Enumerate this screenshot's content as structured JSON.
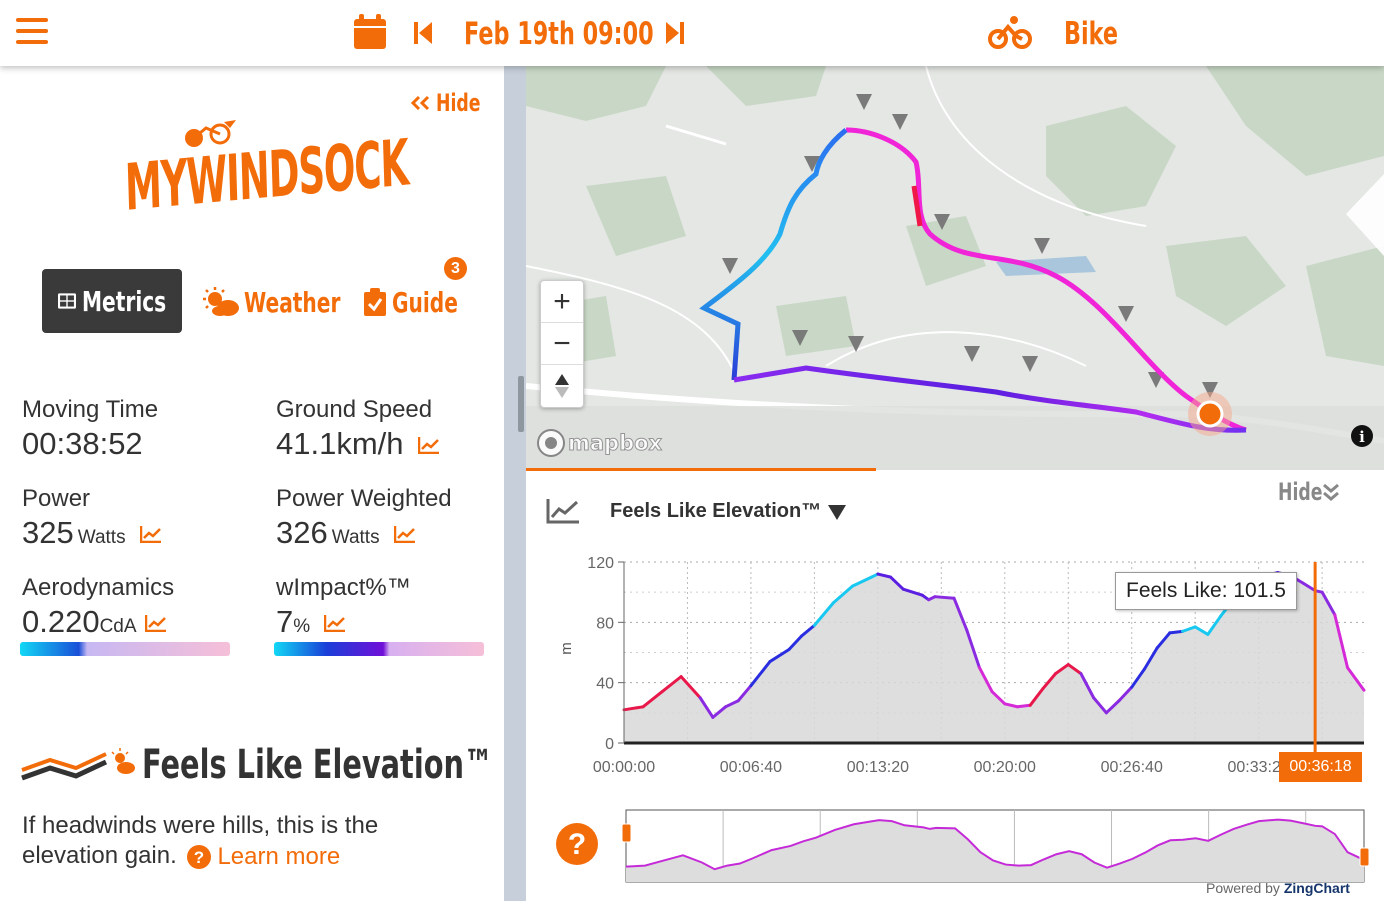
{
  "header": {
    "date_time": "Feb 19th 09:00",
    "activity": "Bike"
  },
  "sidebar": {
    "hide_label": "Hide",
    "logo_text": "MYWINDSOCK",
    "tabs": [
      {
        "label": "Metrics",
        "active": true
      },
      {
        "label": "Weather",
        "active": false
      },
      {
        "label": "Guide",
        "active": false,
        "badge": "3"
      }
    ],
    "metrics": {
      "moving_time": {
        "label": "Moving Time",
        "value": "00:38:52"
      },
      "ground_speed": {
        "label": "Ground Speed",
        "value": "41.1km/h"
      },
      "power": {
        "label": "Power",
        "value": "325",
        "unit": "Watts"
      },
      "power_weighted": {
        "label": "Power Weighted",
        "value": "326",
        "unit": "Watts"
      },
      "aerodynamics": {
        "label": "Aerodynamics",
        "value": "0.220",
        "unit": "CdA"
      },
      "wimpact": {
        "label": "wImpact%™",
        "value": "7",
        "unit": "%"
      }
    },
    "feature": {
      "title": "Feels Like Elevation™",
      "description": "If headwinds were hills, this is the elevation gain.",
      "learn_more": "Learn more"
    }
  },
  "map": {
    "attribution": "mapbox",
    "zoom_in": "+",
    "zoom_out": "−"
  },
  "chart_panel": {
    "hide_label": "Hide",
    "selector_label": "Feels Like Elevation™",
    "tooltip": "Feels Like: 101.5",
    "cursor_time": "00:36:18",
    "powered_by": "Powered by",
    "powered_brand": "ZingChart"
  },
  "chart_data": {
    "type": "area",
    "title": "",
    "xlabel": "",
    "ylabel": "m",
    "ylim": [
      0,
      120
    ],
    "y_ticks": [
      0,
      40,
      80,
      120
    ],
    "x_ticks": [
      "00:00:00",
      "00:06:40",
      "00:13:20",
      "00:20:00",
      "00:26:40",
      "00:33:20"
    ],
    "x_tick_seconds": [
      0,
      400,
      800,
      1200,
      1600,
      2000
    ],
    "x_max_seconds": 2332,
    "series": [
      {
        "x": [
          0,
          60,
          120,
          180,
          240,
          280,
          320,
          360,
          400,
          460,
          520,
          560,
          600,
          660,
          720,
          780,
          800,
          840,
          880,
          940,
          960,
          980,
          1040,
          1080,
          1120,
          1160,
          1200,
          1240,
          1280,
          1320,
          1360,
          1400,
          1440,
          1480,
          1520,
          1560,
          1600,
          1640,
          1680,
          1720,
          1760,
          1800,
          1840,
          1880,
          1920,
          1960,
          2000,
          2060,
          2100,
          2140,
          2178,
          2200,
          2240,
          2280,
          2332
        ],
        "y": [
          22,
          24,
          34,
          44,
          30,
          17,
          24,
          28,
          38,
          54,
          62,
          71,
          78,
          93,
          104,
          110,
          112,
          110,
          102,
          98,
          95,
          97,
          96,
          75,
          50,
          34,
          26,
          24,
          25,
          36,
          46,
          52,
          46,
          30,
          20,
          28,
          37,
          49,
          63,
          73,
          74,
          77,
          72,
          84,
          95,
          103,
          110,
          113,
          111,
          106,
          101,
          100,
          85,
          50,
          35
        ]
      }
    ]
  }
}
